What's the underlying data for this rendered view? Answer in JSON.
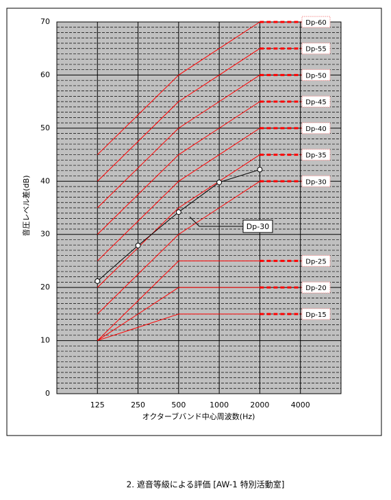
{
  "chart_data": {
    "type": "line",
    "y_label": "音圧レベル差(dB)",
    "x_label": "オクターブバンド中心周波数(Hz)",
    "caption": "2. 遮音等級による評価 [AW-1 特別活動室]",
    "categories": [
      "125",
      "250",
      "500",
      "1000",
      "2000",
      "4000"
    ],
    "ylim": [
      0,
      70
    ],
    "yticks": [
      0,
      10,
      20,
      30,
      40,
      50,
      60,
      70
    ],
    "minor_yticks": [
      1,
      2,
      3,
      4,
      5,
      6,
      7,
      8,
      9,
      11,
      12,
      13,
      14,
      15,
      16,
      17,
      18,
      19,
      21,
      22,
      23,
      24,
      25,
      26,
      27,
      28,
      29,
      31,
      32,
      33,
      34,
      35,
      36,
      37,
      38,
      39,
      41,
      42,
      43,
      44,
      45,
      46,
      47,
      48,
      49,
      51,
      52,
      53,
      54,
      55,
      56,
      57,
      58,
      59,
      61,
      62,
      63,
      64,
      65,
      66,
      67,
      68,
      69
    ],
    "background": "#c0c0c0",
    "series": [
      {
        "name": "Dp-60",
        "color": "#ff0000",
        "values": [
          45,
          52.5,
          60,
          65,
          70,
          null
        ]
      },
      {
        "name": "Dp-55",
        "color": "#ff0000",
        "values": [
          40,
          47.5,
          55,
          60,
          65,
          null
        ]
      },
      {
        "name": "Dp-50",
        "color": "#ff0000",
        "values": [
          35,
          42.5,
          50,
          55,
          60,
          null
        ]
      },
      {
        "name": "Dp-45",
        "color": "#ff0000",
        "values": [
          30,
          37.5,
          45,
          50,
          55,
          null
        ]
      },
      {
        "name": "Dp-40",
        "color": "#ff0000",
        "values": [
          25,
          32.5,
          40,
          45,
          50,
          null
        ]
      },
      {
        "name": "Dp-35",
        "color": "#ff0000",
        "values": [
          20,
          27.5,
          35,
          40,
          45,
          null
        ]
      },
      {
        "name": "Dp-30",
        "color": "#ff0000",
        "values": [
          15,
          22.5,
          30,
          35,
          40,
          null
        ]
      },
      {
        "name": "Dp-25",
        "color": "#ff0000",
        "values": [
          10,
          17.5,
          25,
          25,
          25,
          null
        ]
      },
      {
        "name": "Dp-20",
        "color": "#ff0000",
        "values": [
          10,
          15,
          20,
          20,
          20,
          null
        ]
      },
      {
        "name": "Dp-15",
        "color": "#ff0000",
        "values": [
          10,
          12.5,
          15,
          15,
          15,
          null
        ]
      }
    ],
    "measured": {
      "color": "#000000",
      "values": [
        21.2,
        27.9,
        34.2,
        39.8,
        42.2,
        null
      ]
    },
    "annotation": "Dp-30"
  }
}
